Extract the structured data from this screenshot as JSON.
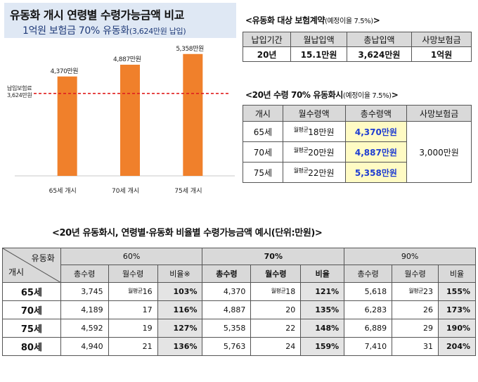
{
  "title": {
    "main": "유동화 개시 연령별 수령가능금액 비교",
    "sub_main": "1억원 보험금 70% 유동화",
    "sub_paren": "(3,624만원 납입)"
  },
  "chart_data": {
    "type": "bar",
    "title": "유동화 개시 연령별 수령가능금액 비교",
    "categories": [
      "65세 개시",
      "70세 개시",
      "75세 개시"
    ],
    "values": [
      4370,
      4887,
      5358
    ],
    "value_labels": [
      "4,370만원",
      "4,887만원",
      "5,358만원"
    ],
    "unit": "만원",
    "reference_line": {
      "value": 3624,
      "label_line1": "납입보험료",
      "label_line2": "3,624만원",
      "style": "dashed"
    },
    "ylim": [
      0,
      6000
    ],
    "grid": false,
    "bar_color": "#f0802b",
    "ref_color": "#e02020"
  },
  "contract": {
    "title": "<유동화 대상 보험계약",
    "title_note": "(예정이율 7.5%)",
    "title_end": ">",
    "headers": [
      "납입기간",
      "월납입액",
      "총납입액",
      "사망보험금"
    ],
    "row": [
      "20년",
      "15.1만원",
      "3,624만원",
      "1억원"
    ]
  },
  "pension": {
    "title": "<20년 수령 70% 유동화시",
    "title_note": "(예정이율 7.5%)",
    "title_end": ">",
    "headers": [
      "개시",
      "월수령액",
      "총수령액",
      "사망보험금"
    ],
    "prefix": "월평균",
    "rows": [
      {
        "age": "65세",
        "monthly": "18만원",
        "total": "4,370만원"
      },
      {
        "age": "70세",
        "monthly": "20만원",
        "total": "4,887만원"
      },
      {
        "age": "75세",
        "monthly": "22만원",
        "total": "5,358만원"
      }
    ],
    "death_benefit": "3,000만원"
  },
  "big_table": {
    "title": "<20년 유동화시, 연령별·유동화 비율별 수령가능금액 예시(단위:만원)>",
    "corner_top": "유동화",
    "corner_bottom": "개시",
    "groups": [
      "60%",
      "70%",
      "90%"
    ],
    "sub_headers": [
      "총수령",
      "월수령",
      "비율※"
    ],
    "sub_headers_plain": [
      "총수령",
      "월수령",
      "비율"
    ],
    "prefix": "월평균",
    "rows": [
      {
        "age": "65세",
        "cells": [
          [
            "3,745",
            "16",
            "103%"
          ],
          [
            "4,370",
            "18",
            "121%"
          ],
          [
            "5,618",
            "23",
            "155%"
          ]
        ]
      },
      {
        "age": "70세",
        "cells": [
          [
            "4,189",
            "17",
            "116%"
          ],
          [
            "4,887",
            "20",
            "135%"
          ],
          [
            "6,283",
            "26",
            "173%"
          ]
        ]
      },
      {
        "age": "75세",
        "cells": [
          [
            "4,592",
            "19",
            "127%"
          ],
          [
            "5,358",
            "22",
            "148%"
          ],
          [
            "6,889",
            "29",
            "190%"
          ]
        ]
      },
      {
        "age": "80세",
        "cells": [
          [
            "4,940",
            "21",
            "136%"
          ],
          [
            "5,763",
            "24",
            "159%"
          ],
          [
            "7,410",
            "31",
            "204%"
          ]
        ]
      }
    ]
  }
}
